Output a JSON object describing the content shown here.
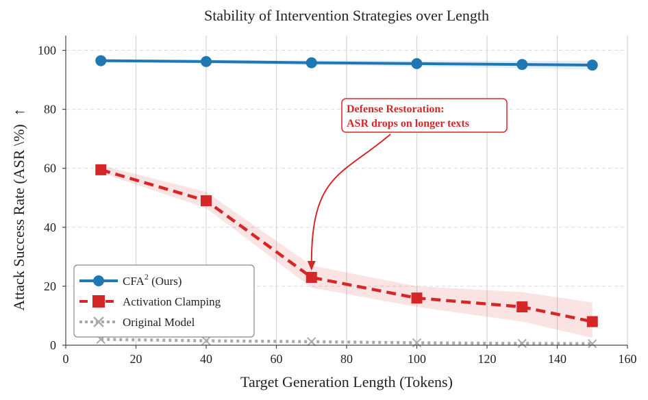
{
  "chart_data": {
    "type": "line",
    "title": "Stability of Intervention Strategies over Length",
    "xlabel": "Target Generation Length (Tokens)",
    "ylabel": "Attack Success Rate (ASR \\%)",
    "ylabel_arrow": "↑",
    "xlim": [
      0,
      160
    ],
    "ylim": [
      0,
      105
    ],
    "xticks": [
      0,
      20,
      40,
      60,
      80,
      100,
      120,
      140,
      160
    ],
    "yticks": [
      0,
      20,
      40,
      60,
      80,
      100
    ],
    "x": [
      10,
      40,
      70,
      100,
      130,
      150
    ],
    "series": [
      {
        "name": "CFA",
        "name_superscript": "2",
        "name_suffix": " (Ours)",
        "values": [
          96.5,
          96.2,
          95.8,
          95.5,
          95.2,
          95.0
        ],
        "band_lower": [
          96.0,
          95.6,
          95.0,
          94.5,
          94.0,
          93.5
        ],
        "band_upper": [
          97.0,
          96.8,
          96.6,
          96.5,
          96.4,
          96.5
        ],
        "color": "#1f77b4",
        "linestyle": "solid",
        "marker": "circle"
      },
      {
        "name": "Activation Clamping",
        "values": [
          59.5,
          49.0,
          23.0,
          16.0,
          13.0,
          8.0
        ],
        "band_lower": [
          58.5,
          46.5,
          19.5,
          13.0,
          8.0,
          2.5
        ],
        "band_upper": [
          61.0,
          52.0,
          27.0,
          20.0,
          18.0,
          14.5
        ],
        "color": "#d62728",
        "linestyle": "dashed",
        "marker": "square"
      },
      {
        "name": "Original Model",
        "values": [
          2.0,
          1.5,
          1.2,
          0.8,
          0.6,
          0.5
        ],
        "color": "#aaaaaa",
        "linestyle": "dotted",
        "marker": "x"
      }
    ],
    "annotation": {
      "lines": [
        "Defense Restoration:",
        "ASR drops on longer texts"
      ],
      "color": "#d62728",
      "points_to": {
        "x": 70,
        "y": 23
      }
    },
    "legend_position": "lower-left",
    "grid": true
  }
}
